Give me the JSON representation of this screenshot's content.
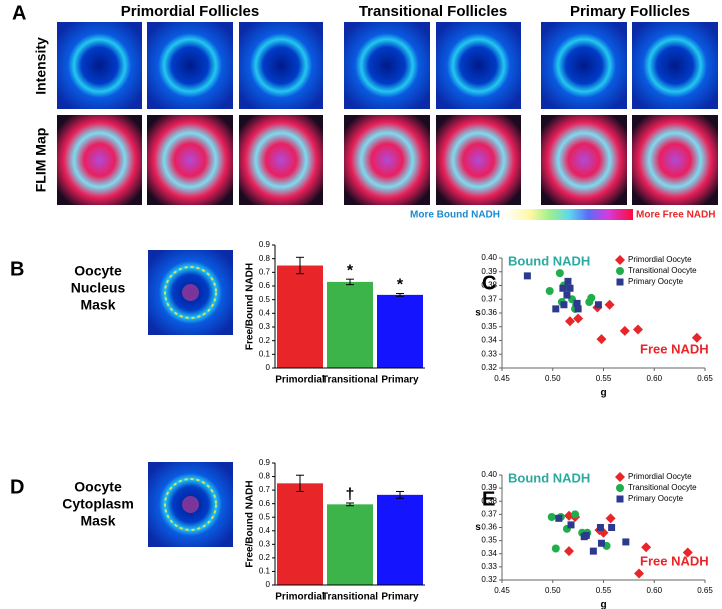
{
  "figure": {
    "panel_a": "A",
    "panel_b": "B",
    "panel_c": "C",
    "panel_d": "D",
    "panel_e": "E",
    "columns": [
      "Primordial Follicles",
      "Transitional Follicles",
      "Primary Follicles"
    ],
    "rows": [
      "Intensity",
      "FLIM Map"
    ],
    "colorbar": {
      "left": "More Bound NADH",
      "right": "More Free NADH"
    },
    "mask_b": [
      "Oocyte",
      "Nucleus",
      "Mask"
    ],
    "mask_d": [
      "Oocyte",
      "Cytoplasm",
      "Mask"
    ]
  },
  "chart_data": [
    {
      "type": "bar",
      "ylabel": "Free/Bound NADH",
      "categories": [
        "Primordial",
        "Transitional",
        "Primary"
      ],
      "values": [
        0.75,
        0.63,
        0.535
      ],
      "errors": [
        0.06,
        0.02,
        0.01
      ],
      "markers": [
        null,
        "*",
        "*"
      ],
      "colors": [
        "#e8262a",
        "#3cb44a",
        "#1414ff"
      ],
      "ylim": [
        0,
        0.9
      ],
      "yticks": [
        0,
        0.1,
        0.2,
        0.3,
        0.4,
        0.5,
        0.6,
        0.7,
        0.8,
        0.9
      ]
    },
    {
      "type": "scatter",
      "xlabel": "g",
      "ylabel": "s",
      "annotations": {
        "bound": "Bound NADH",
        "free": "Free NADH"
      },
      "legend": "upper right",
      "xlim": [
        0.45,
        0.65
      ],
      "xticks": [
        0.45,
        {
          "value": 0.5,
          "label": "0.50"
        },
        0.55,
        {
          "value": 0.6,
          "label": "0.60"
        },
        0.65
      ],
      "ylim": [
        0.32,
        0.4
      ],
      "yticks": [
        0.32,
        0.33,
        0.34,
        0.35,
        0.36,
        0.37,
        0.38,
        0.39,
        {
          "value": 0.4,
          "label": "0.40"
        }
      ],
      "series": [
        {
          "name": "Primordial Oocyte",
          "color": "#e8262a",
          "marker": "diamond",
          "x": [
            0.544,
            0.556,
            0.525,
            0.517,
            0.548,
            0.571,
            0.584,
            0.642
          ],
          "y": [
            0.364,
            0.366,
            0.356,
            0.354,
            0.341,
            0.347,
            0.348,
            0.342
          ]
        },
        {
          "name": "Transitional Oocyte",
          "color": "#1fae4b",
          "marker": "circle",
          "x": [
            0.507,
            0.497,
            0.511,
            0.519,
            0.523,
            0.536,
            0.538,
            0.522,
            0.509
          ],
          "y": [
            0.389,
            0.376,
            0.38,
            0.37,
            0.366,
            0.368,
            0.371,
            0.363,
            0.368
          ]
        },
        {
          "name": "Primary Oocyte",
          "color": "#2b3a8f",
          "marker": "square",
          "x": [
            0.475,
            0.515,
            0.517,
            0.51,
            0.514,
            0.503,
            0.511,
            0.524,
            0.525,
            0.545
          ],
          "y": [
            0.387,
            0.383,
            0.378,
            0.378,
            0.373,
            0.363,
            0.366,
            0.367,
            0.363,
            0.366
          ]
        }
      ]
    },
    {
      "type": "bar",
      "ylabel": "Free/Bound NADH",
      "categories": [
        "Primordial",
        "Transitional",
        "Primary"
      ],
      "values": [
        0.75,
        0.595,
        0.665
      ],
      "errors": [
        0.06,
        0.01,
        0.025
      ],
      "markers": [
        null,
        "†",
        null
      ],
      "colors": [
        "#e8262a",
        "#3cb44a",
        "#1414ff"
      ],
      "ylim": [
        0,
        0.9
      ],
      "yticks": [
        0,
        0.1,
        0.2,
        0.3,
        0.4,
        0.5,
        0.6,
        0.7,
        0.8,
        0.9
      ]
    },
    {
      "type": "scatter",
      "xlabel": "g",
      "ylabel": "s",
      "annotations": {
        "bound": "Bound NADH",
        "free": "Free NADH"
      },
      "legend": "upper right",
      "xlim": [
        0.45,
        0.65
      ],
      "xticks": [
        0.45,
        {
          "value": 0.5,
          "label": "0.50"
        },
        0.55,
        {
          "value": 0.6,
          "label": "0.60"
        },
        0.65
      ],
      "ylim": [
        0.32,
        0.4
      ],
      "yticks": [
        0.32,
        0.33,
        0.34,
        0.35,
        0.36,
        0.37,
        0.38,
        0.39,
        {
          "value": 0.4,
          "label": "0.40"
        }
      ],
      "series": [
        {
          "name": "Primordial Oocyte",
          "color": "#e8262a",
          "marker": "diamond",
          "x": [
            0.516,
            0.522,
            0.557,
            0.546,
            0.55,
            0.516,
            0.592,
            0.633,
            0.585
          ],
          "y": [
            0.369,
            0.368,
            0.367,
            0.358,
            0.356,
            0.342,
            0.345,
            0.341,
            0.325
          ]
        },
        {
          "name": "Transitional Oocyte",
          "color": "#1fae4b",
          "marker": "circle",
          "x": [
            0.499,
            0.508,
            0.522,
            0.503,
            0.529,
            0.533,
            0.553,
            0.514,
            0.534
          ],
          "y": [
            0.368,
            0.368,
            0.37,
            0.344,
            0.356,
            0.354,
            0.346,
            0.359,
            0.356
          ]
        },
        {
          "name": "Primary Oocyte",
          "color": "#2b3a8f",
          "marker": "square",
          "x": [
            0.506,
            0.518,
            0.533,
            0.531,
            0.547,
            0.558,
            0.548,
            0.54,
            0.572
          ],
          "y": [
            0.367,
            0.362,
            0.354,
            0.353,
            0.36,
            0.36,
            0.348,
            0.342,
            0.349
          ]
        }
      ]
    }
  ]
}
